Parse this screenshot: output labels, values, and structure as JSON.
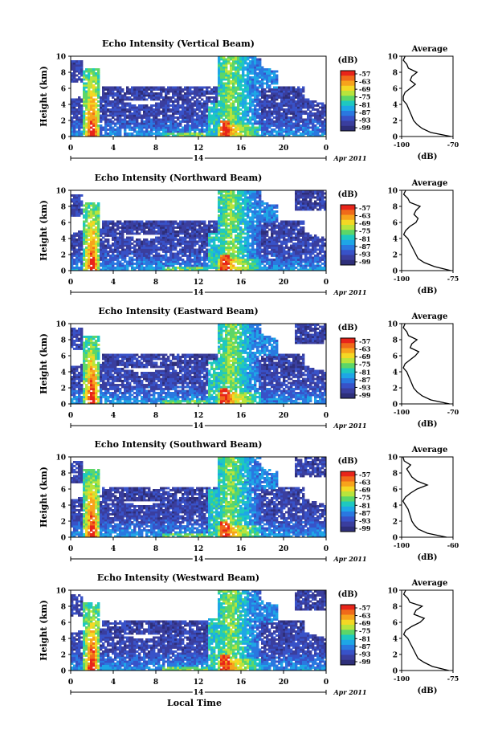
{
  "figure": {
    "date_label": "Apr 2011",
    "xlabel_bottom": "Local Time",
    "day_label": "14"
  },
  "colorbar": {
    "unit": "(dB)",
    "ticks": [
      "-57",
      "-63",
      "-69",
      "-75",
      "-81",
      "-87",
      "-93",
      "-99"
    ],
    "colors": [
      "#e8241a",
      "#f06a1a",
      "#f7a31c",
      "#f4d824",
      "#b8e43c",
      "#5cd668",
      "#1ec8c0",
      "#1ea6e6",
      "#2a78e0",
      "#3852c8",
      "#3a3e9e",
      "#2e2f7a"
    ]
  },
  "chart_data": [
    {
      "type": "heatmap",
      "name": "vertical",
      "title": "Echo Intensity (Vertical Beam)",
      "ylabel": "Height (km)",
      "xlim": [
        0,
        24
      ],
      "ylim": [
        0,
        10
      ],
      "x_ticks": [
        "0",
        "4",
        "8",
        "12",
        "16",
        "20",
        "0"
      ],
      "y_ticks": [
        "0",
        "2",
        "4",
        "6",
        "8",
        "10"
      ],
      "profile": {
        "title": "Average",
        "xlabel": "(dB)",
        "xlim": [
          -100,
          -70
        ],
        "x_ticks": [
          "-100",
          "-70"
        ],
        "y_ticks": [
          "0",
          "2",
          "4",
          "6",
          "8",
          "10"
        ],
        "height": [
          0,
          0.5,
          1,
          1.5,
          2,
          2.5,
          3,
          3.5,
          4,
          4.5,
          5,
          5.5,
          6,
          6.5,
          7,
          7.5,
          8,
          8.5,
          9,
          9.5,
          10
        ],
        "values": [
          -71,
          -83,
          -88,
          -91,
          -93,
          -94,
          -95,
          -96,
          -97,
          -99,
          -99,
          -98,
          -95,
          -92,
          -95,
          -94,
          -91,
          -96,
          -97,
          -99,
          -98
        ]
      }
    },
    {
      "type": "heatmap",
      "name": "northward",
      "title": "Echo Intensity (Northward Beam)",
      "ylabel": "Height (km)",
      "xlim": [
        0,
        24
      ],
      "ylim": [
        0,
        10
      ],
      "x_ticks": [
        "0",
        "4",
        "8",
        "12",
        "16",
        "20",
        "0"
      ],
      "y_ticks": [
        "0",
        "2",
        "4",
        "6",
        "8",
        "10"
      ],
      "profile": {
        "title": "Average",
        "xlabel": "(dB)",
        "xlim": [
          -100,
          -75
        ],
        "x_ticks": [
          "-100",
          "-75"
        ],
        "y_ticks": [
          "0",
          "2",
          "4",
          "6",
          "8",
          "10"
        ],
        "height": [
          0,
          0.5,
          1,
          1.5,
          2,
          2.5,
          3,
          3.5,
          4,
          4.5,
          5,
          5.5,
          6,
          6.5,
          7,
          7.5,
          8,
          8.5,
          9,
          9.5,
          10
        ],
        "values": [
          -76,
          -84,
          -89,
          -92,
          -93,
          -94,
          -95,
          -96,
          -97,
          -99,
          -98,
          -96,
          -93,
          -92,
          -94,
          -93,
          -91,
          -96,
          -97,
          -99,
          -98
        ]
      }
    },
    {
      "type": "heatmap",
      "name": "eastward",
      "title": "Echo Intensity (Eastward Beam)",
      "ylabel": "Height (km)",
      "xlim": [
        0,
        24
      ],
      "ylim": [
        0,
        10
      ],
      "x_ticks": [
        "0",
        "4",
        "8",
        "12",
        "16",
        "20",
        "0"
      ],
      "y_ticks": [
        "0",
        "2",
        "4",
        "6",
        "8",
        "10"
      ],
      "profile": {
        "title": "Average",
        "xlabel": "(dB)",
        "xlim": [
          -100,
          -70
        ],
        "x_ticks": [
          "-100",
          "-70"
        ],
        "y_ticks": [
          "0",
          "2",
          "4",
          "6",
          "8",
          "10"
        ],
        "height": [
          0,
          0.5,
          1,
          1.5,
          2,
          2.5,
          3,
          3.5,
          4,
          4.5,
          5,
          5.5,
          6,
          6.5,
          7,
          7.5,
          8,
          8.5,
          9,
          9.5,
          10
        ],
        "values": [
          -72,
          -83,
          -88,
          -91,
          -93,
          -94,
          -95,
          -96,
          -97,
          -99,
          -98,
          -95,
          -92,
          -90,
          -95,
          -94,
          -91,
          -96,
          -97,
          -99,
          -98
        ]
      }
    },
    {
      "type": "heatmap",
      "name": "southward",
      "title": "Echo Intensity (Southward Beam)",
      "ylabel": "Height (km)",
      "xlim": [
        0,
        24
      ],
      "ylim": [
        0,
        10
      ],
      "x_ticks": [
        "0",
        "4",
        "8",
        "12",
        "16",
        "20",
        "0"
      ],
      "y_ticks": [
        "0",
        "2",
        "4",
        "6",
        "8",
        "10"
      ],
      "profile": {
        "title": "Average",
        "xlabel": "(dB)",
        "xlim": [
          -100,
          -60
        ],
        "x_ticks": [
          "-100",
          "-60"
        ],
        "y_ticks": [
          "0",
          "2",
          "4",
          "6",
          "8",
          "10"
        ],
        "height": [
          0,
          0.5,
          1,
          1.5,
          2,
          2.5,
          3,
          3.5,
          4,
          4.5,
          5,
          5.5,
          6,
          6.5,
          7,
          7.5,
          8,
          8.5,
          9,
          9.5,
          10
        ],
        "values": [
          -65,
          -80,
          -87,
          -90,
          -92,
          -93,
          -94,
          -95,
          -97,
          -99,
          -97,
          -93,
          -88,
          -80,
          -88,
          -92,
          -94,
          -96,
          -93,
          -98,
          -99
        ]
      }
    },
    {
      "type": "heatmap",
      "name": "westward",
      "title": "Echo Intensity (Westward Beam)",
      "ylabel": "Height (km)",
      "xlim": [
        0,
        24
      ],
      "ylim": [
        0,
        10
      ],
      "x_ticks": [
        "0",
        "4",
        "8",
        "12",
        "16",
        "20",
        "0"
      ],
      "y_ticks": [
        "0",
        "2",
        "4",
        "6",
        "8",
        "10"
      ],
      "profile": {
        "title": "Average",
        "xlabel": "(dB)",
        "xlim": [
          -100,
          -75
        ],
        "x_ticks": [
          "-100",
          "-75"
        ],
        "y_ticks": [
          "0",
          "2",
          "4",
          "6",
          "8",
          "10"
        ],
        "height": [
          0,
          0.5,
          1,
          1.5,
          2,
          2.5,
          3,
          3.5,
          4,
          4.5,
          5,
          5.5,
          6,
          6.5,
          7,
          7.5,
          8,
          8.5,
          9,
          9.5,
          10
        ],
        "values": [
          -77,
          -85,
          -89,
          -92,
          -93,
          -94,
          -95,
          -96,
          -97,
          -99,
          -98,
          -95,
          -91,
          -89,
          -94,
          -93,
          -90,
          -96,
          -97,
          -99,
          -98
        ]
      }
    }
  ]
}
